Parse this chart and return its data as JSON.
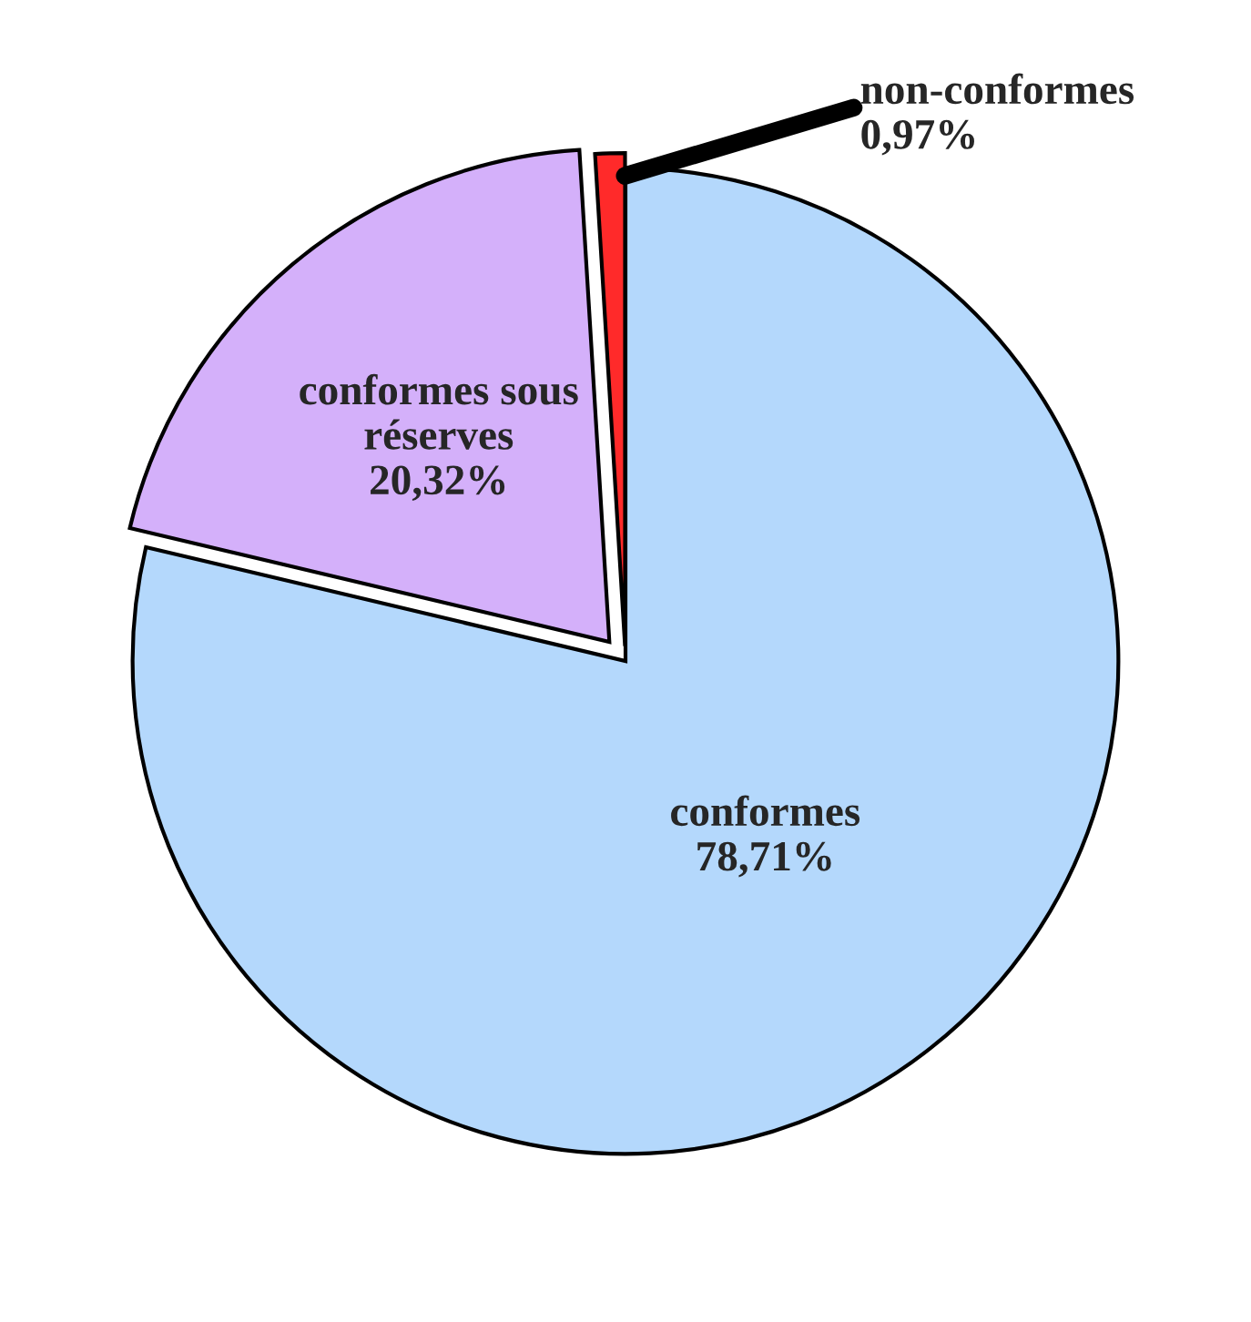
{
  "chart_data": {
    "type": "pie",
    "categories": [
      "conformes",
      "conformes sous réserves",
      "non-conformes"
    ],
    "values": [
      78.71,
      20.32,
      0.97
    ],
    "value_labels": [
      "78,71%",
      "20,32%",
      "0,97%"
    ],
    "colors": [
      "#b4d8fc",
      "#d4b0fa",
      "#ff2a2a"
    ],
    "legend": false
  }
}
